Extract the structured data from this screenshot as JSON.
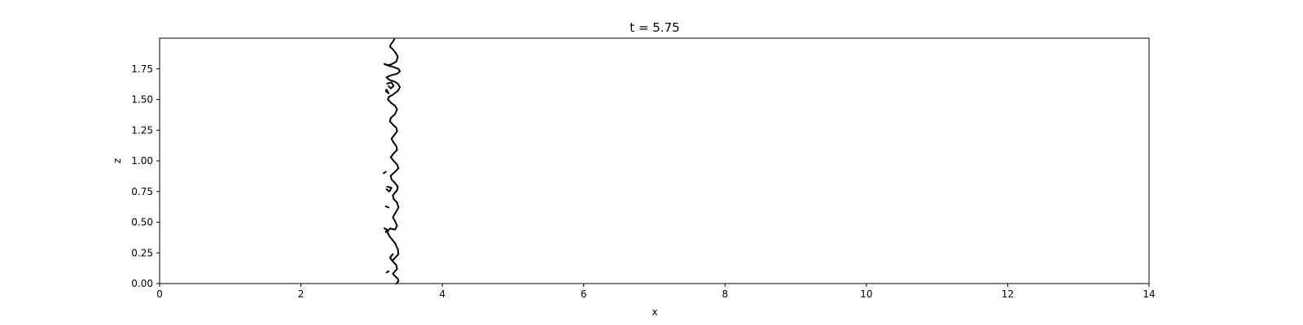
{
  "chart_data": {
    "type": "line",
    "title": "t = 5.75",
    "xlabel": "x",
    "ylabel": "z",
    "xlim": [
      0,
      14
    ],
    "ylim": [
      0,
      2.0
    ],
    "xticks": [
      0,
      2,
      4,
      6,
      8,
      10,
      12,
      14
    ],
    "xtick_labels": [
      "0",
      "2",
      "4",
      "6",
      "8",
      "10",
      "12",
      "14"
    ],
    "yticks": [
      0,
      0.25,
      0.5,
      0.75,
      1.0,
      1.25,
      1.5,
      1.75
    ],
    "ytick_labels": [
      "0.00",
      "0.25",
      "0.50",
      "0.75",
      "1.00",
      "1.25",
      "1.50",
      "1.75"
    ],
    "grid": false,
    "line_color": "#000000",
    "series": [
      {
        "x": [
          3.32,
          3.3,
          3.27,
          3.26,
          3.3,
          3.34,
          3.37,
          3.35,
          3.29,
          3.24,
          3.28,
          3.33,
          3.38,
          3.4,
          3.36,
          3.29,
          3.24,
          3.21,
          3.25,
          3.31,
          3.37,
          3.4,
          3.37,
          3.3,
          3.24,
          3.23,
          3.28,
          3.33,
          3.36,
          3.33,
          3.27,
          3.26,
          3.31,
          3.35,
          3.36,
          3.32,
          3.28,
          3.31,
          3.35,
          3.36,
          3.31,
          3.27,
          3.31,
          3.36,
          3.38,
          3.33,
          3.27,
          3.28,
          3.33,
          3.37,
          3.36,
          3.3,
          3.31,
          3.36,
          3.38,
          3.34,
          3.3,
          3.33,
          3.36,
          3.33,
          3.26,
          3.22,
          3.26,
          3.33,
          3.37,
          3.38,
          3.33,
          3.3
        ],
        "y": [
          1.99,
          1.97,
          1.95,
          1.93,
          1.91,
          1.88,
          1.85,
          1.81,
          1.79,
          1.78,
          1.77,
          1.76,
          1.75,
          1.73,
          1.71,
          1.7,
          1.69,
          1.68,
          1.66,
          1.65,
          1.63,
          1.6,
          1.57,
          1.54,
          1.52,
          1.5,
          1.47,
          1.45,
          1.42,
          1.38,
          1.35,
          1.32,
          1.29,
          1.27,
          1.24,
          1.21,
          1.18,
          1.15,
          1.12,
          1.09,
          1.06,
          1.03,
          1.0,
          0.97,
          0.94,
          0.91,
          0.88,
          0.85,
          0.82,
          0.79,
          0.76,
          0.72,
          0.69,
          0.66,
          0.62,
          0.58,
          0.54,
          0.51,
          0.47,
          0.44,
          0.45,
          0.42,
          0.38,
          0.33,
          0.28,
          0.24,
          0.21,
          0.19
        ]
      },
      {
        "x": [
          3.3,
          3.26,
          3.3,
          3.35,
          3.36,
          3.33,
          3.3,
          3.33,
          3.37,
          3.38,
          3.35
        ],
        "y": [
          0.24,
          0.21,
          0.18,
          0.15,
          0.12,
          0.1,
          0.08,
          0.06,
          0.04,
          0.02,
          0.0
        ]
      },
      {
        "x": [
          3.24,
          3.18,
          3.22,
          3.27
        ],
        "y": [
          1.78,
          1.79,
          1.78,
          1.77
        ]
      },
      {
        "x": [
          3.22,
          3.28,
          3.31,
          3.27,
          3.24
        ],
        "y": [
          1.63,
          1.64,
          1.61,
          1.59,
          1.61
        ]
      },
      {
        "x": [
          3.2,
          3.24,
          3.21
        ],
        "y": [
          1.57,
          1.55,
          1.58
        ]
      },
      {
        "x": [
          3.17,
          3.2
        ],
        "y": [
          0.9,
          0.91
        ]
      },
      {
        "x": [
          3.22,
          3.28,
          3.25,
          3.21
        ],
        "y": [
          0.79,
          0.78,
          0.75,
          0.77
        ]
      },
      {
        "x": [
          3.2,
          3.24
        ],
        "y": [
          0.63,
          0.62
        ]
      },
      {
        "x": [
          3.18,
          3.22,
          3.2
        ],
        "y": [
          0.45,
          0.44,
          0.42
        ]
      },
      {
        "x": [
          3.21,
          3.24
        ],
        "y": [
          0.09,
          0.1
        ]
      }
    ]
  }
}
